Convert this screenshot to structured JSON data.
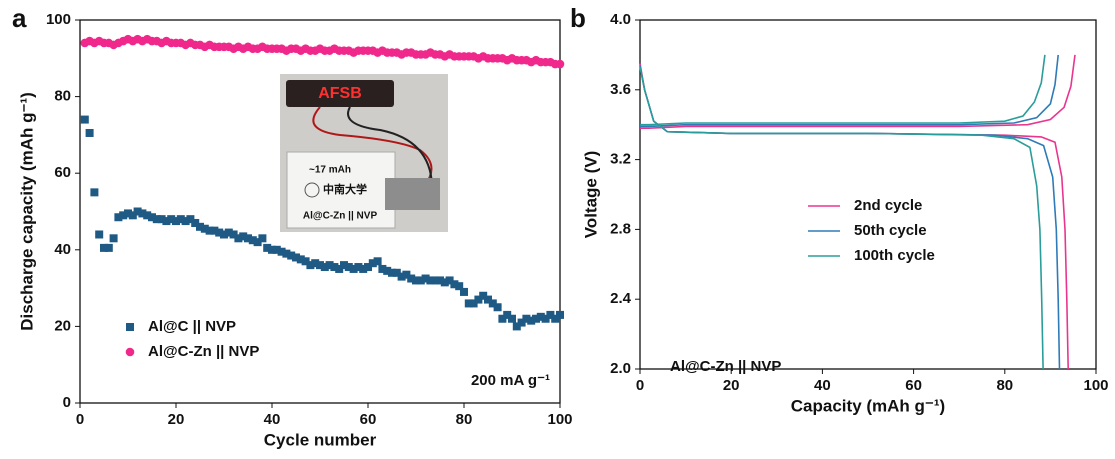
{
  "chart_data": [
    {
      "type": "scatter",
      "panel_label": "a",
      "x_label": "Cycle number",
      "y_label": "Discharge capacity (mAh g⁻¹)",
      "annotation": "200 mA g⁻¹",
      "inset": {
        "display": "AFSB",
        "capacity": "~17 mAh",
        "logo": "中南大学",
        "label": "Al@C-Zn || NVP"
      },
      "xlim": [
        0,
        100
      ],
      "xticks": [
        0,
        20,
        40,
        60,
        80,
        100
      ],
      "ylim": [
        0,
        100
      ],
      "yticks": [
        0,
        20,
        40,
        60,
        80,
        100
      ],
      "legend": "lower left",
      "x": [
        1,
        2,
        3,
        4,
        5,
        6,
        7,
        8,
        9,
        10,
        11,
        12,
        13,
        14,
        15,
        16,
        17,
        18,
        19,
        20,
        21,
        22,
        23,
        24,
        25,
        26,
        27,
        28,
        29,
        30,
        31,
        32,
        33,
        34,
        35,
        36,
        37,
        38,
        39,
        40,
        41,
        42,
        43,
        44,
        45,
        46,
        47,
        48,
        49,
        50,
        51,
        52,
        53,
        54,
        55,
        56,
        57,
        58,
        59,
        60,
        61,
        62,
        63,
        64,
        65,
        66,
        67,
        68,
        69,
        70,
        71,
        72,
        73,
        74,
        75,
        76,
        77,
        78,
        79,
        80,
        81,
        82,
        83,
        84,
        85,
        86,
        87,
        88,
        89,
        90,
        91,
        92,
        93,
        94,
        95,
        96,
        97,
        98,
        99,
        100
      ],
      "series": [
        {
          "name": "Al@C || NVP",
          "color": "#1f5a85",
          "marker": "square",
          "values": [
            74,
            70.5,
            55,
            44,
            40.5,
            40.5,
            43,
            48.5,
            49,
            49.5,
            49,
            50,
            49.5,
            49,
            48.5,
            48,
            48,
            47.5,
            48,
            47.5,
            48,
            47.5,
            48,
            47,
            46,
            45.5,
            45,
            45,
            44.5,
            44,
            44.5,
            44,
            43,
            43.5,
            43,
            42.5,
            42,
            43,
            40.5,
            40,
            40,
            39.5,
            39,
            38.5,
            38,
            37.5,
            37,
            36,
            36.5,
            36,
            35.5,
            36,
            35.5,
            35,
            36,
            35.5,
            35,
            35.5,
            35,
            35.5,
            36.5,
            37,
            35,
            34.5,
            34,
            34,
            33,
            33.5,
            32.5,
            32,
            32,
            32.5,
            32,
            32,
            32,
            31.5,
            32,
            31,
            30.5,
            29,
            26,
            26,
            27,
            28,
            27,
            26,
            25,
            22,
            23,
            22,
            20,
            21,
            22,
            21.5,
            22,
            22.5,
            22,
            23,
            22,
            23
          ]
        },
        {
          "name": "Al@C-Zn || NVP",
          "color": "#f0288c",
          "marker": "circle",
          "values": [
            94,
            94.5,
            94,
            94.5,
            94,
            94,
            93.5,
            94,
            94.5,
            95,
            94.5,
            95,
            94.5,
            95,
            94.5,
            94.5,
            94,
            94.5,
            94,
            94,
            94,
            93.5,
            94,
            93.5,
            93.5,
            93,
            93.5,
            93,
            93,
            93,
            93,
            92.5,
            93,
            92.5,
            93,
            92.5,
            92.5,
            93,
            92.5,
            92.5,
            92.5,
            92.5,
            92,
            92.5,
            92.5,
            92,
            92.5,
            92,
            92,
            92.5,
            92,
            92,
            92.5,
            92,
            92,
            92,
            91.5,
            92,
            92,
            92,
            92,
            91.5,
            92,
            91.5,
            91.5,
            91.5,
            91,
            91.5,
            91.5,
            91,
            91,
            91,
            91.5,
            91,
            91,
            90.5,
            91,
            90.5,
            90.5,
            90.5,
            90.5,
            90.5,
            90,
            90.5,
            90,
            90,
            90,
            90,
            89.5,
            90,
            89.5,
            89.5,
            89.5,
            89,
            89.5,
            89,
            89,
            89,
            88.5,
            88.5
          ]
        }
      ]
    },
    {
      "type": "line",
      "panel_label": "b",
      "x_label": "Capacity (mAh g⁻¹)",
      "y_label": "Voltage (V)",
      "annotation": "Al@C-Zn || NVP",
      "xlim": [
        0,
        100
      ],
      "xticks": [
        0,
        20,
        40,
        60,
        80,
        100
      ],
      "ylim": [
        2,
        4
      ],
      "yticks": [
        {
          "value": 2,
          "label": "2.0"
        },
        2.4,
        2.8,
        3.2,
        3.6,
        {
          "value": 4,
          "label": "4.0"
        }
      ],
      "legend": "center right",
      "series": [
        {
          "name": "2nd cycle",
          "color": "#e8368f",
          "x": [
            0,
            2,
            10,
            40,
            70,
            85,
            90,
            93,
            94.5,
            95.4,
            null,
            0,
            1,
            3,
            6,
            20,
            50,
            80,
            88,
            91,
            92.5,
            93.2,
            93.6,
            93.9
          ],
          "values": [
            3.38,
            3.38,
            3.39,
            3.39,
            3.39,
            3.4,
            3.43,
            3.5,
            3.62,
            3.8,
            null,
            3.75,
            3.6,
            3.42,
            3.36,
            3.35,
            3.35,
            3.34,
            3.33,
            3.3,
            3.1,
            2.8,
            2.4,
            2
          ]
        },
        {
          "name": "50th cycle",
          "color": "#2e7bb8",
          "x": [
            0,
            2,
            10,
            40,
            70,
            82,
            87,
            90,
            91,
            91.7,
            null,
            0,
            1,
            3,
            6,
            20,
            50,
            78,
            85,
            88.5,
            90.5,
            91.3,
            91.7,
            92
          ],
          "values": [
            3.39,
            3.39,
            3.4,
            3.4,
            3.4,
            3.41,
            3.44,
            3.52,
            3.63,
            3.8,
            null,
            3.74,
            3.6,
            3.42,
            3.36,
            3.35,
            3.35,
            3.34,
            3.32,
            3.28,
            3.1,
            2.8,
            2.4,
            2
          ]
        },
        {
          "name": "100th cycle",
          "color": "#2a9d9a",
          "x": [
            0,
            2,
            10,
            40,
            70,
            80,
            84,
            86.5,
            88,
            88.8,
            null,
            0,
            1,
            3,
            6,
            20,
            50,
            75,
            82,
            85.5,
            87,
            87.7,
            88.1,
            88.4
          ],
          "values": [
            3.4,
            3.4,
            3.41,
            3.41,
            3.41,
            3.42,
            3.45,
            3.53,
            3.64,
            3.8,
            null,
            3.73,
            3.6,
            3.42,
            3.36,
            3.35,
            3.35,
            3.34,
            3.32,
            3.27,
            3.05,
            2.8,
            2.4,
            2
          ]
        }
      ]
    }
  ]
}
